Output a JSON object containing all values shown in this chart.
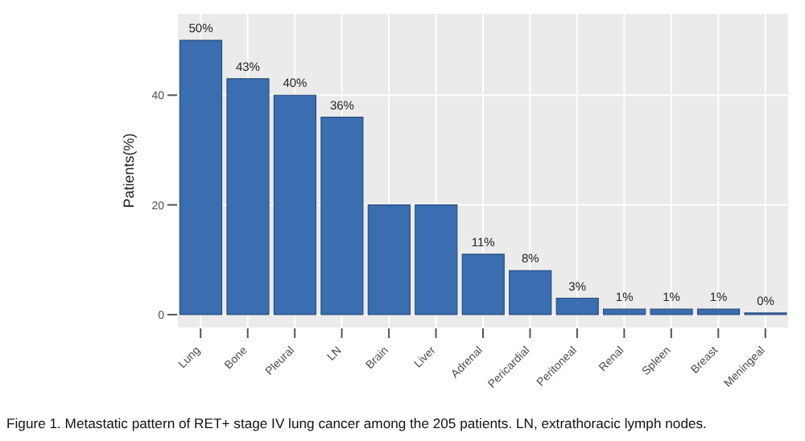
{
  "chart_data": {
    "type": "bar",
    "ylabel": "Patients(%)",
    "categories": [
      "Lung",
      "Bone",
      "Pleural",
      "LN",
      "Brain",
      "Liver",
      "Adrenal",
      "Pericardial",
      "Peritoneal",
      "Renal",
      "Spleen",
      "Breast",
      "Meningeal"
    ],
    "values": [
      50,
      43,
      40,
      36,
      20,
      20,
      11,
      8,
      3,
      1,
      1,
      1,
      0
    ],
    "value_labels": [
      "50%",
      "43%",
      "40%",
      "36%",
      null,
      null,
      "11%",
      "8%",
      "3%",
      "1%",
      "1%",
      "1%",
      "0%"
    ],
    "color": "#3a6eb0",
    "ylim": [
      -2.5,
      55
    ],
    "yticks": [
      0,
      20,
      40
    ],
    "grid": true,
    "annotations": [
      "Figure 1. Metastatic pattern of RET+ stage IV lung cancer among the 205 patients. LN, extrathoracic lymph nodes."
    ]
  }
}
